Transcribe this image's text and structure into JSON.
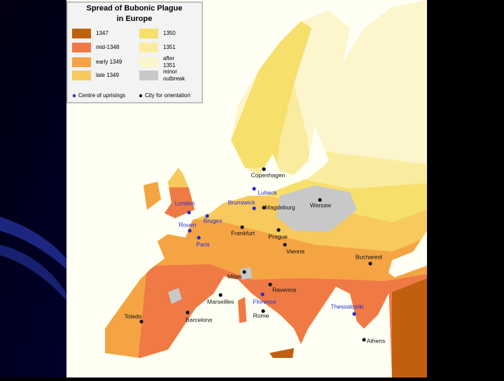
{
  "title": [
    "Spread of Bubonic Plague",
    "in Europe"
  ],
  "legend": {
    "periods": [
      {
        "label": "1347",
        "color": "#c0600f"
      },
      {
        "label": "mid-1348",
        "color": "#ef7a45"
      },
      {
        "label": "early 1349",
        "color": "#f5a444"
      },
      {
        "label": "late 1349",
        "color": "#f8c95c"
      },
      {
        "label": "1350",
        "color": "#f7df6c"
      },
      {
        "label": "1351",
        "color": "#faec9e"
      },
      {
        "label": "after 1351",
        "color": "#fdf5cc"
      },
      {
        "label": "minor outbreak",
        "color": "#c8c8c8"
      }
    ],
    "uprising": {
      "label": "Centre of uprisings",
      "color": "#2a2acc"
    },
    "orientation": {
      "label": "City for orientation",
      "color": "#111111"
    }
  },
  "uprising_cities": [
    "London",
    "Lubeck",
    "Brunswick",
    "Bruges",
    "Rouen",
    "Paris",
    "Florence",
    "Thessaloniki"
  ],
  "orientation_cities": [
    "Copenhagen",
    "Magdeburg",
    "Warsaw",
    "Frankfurt",
    "Prague",
    "Vienna",
    "Bucharest",
    "Milan",
    "Ravenna",
    "Marseilles",
    "Barcelona",
    "Rome",
    "Toledo",
    "Athens"
  ]
}
